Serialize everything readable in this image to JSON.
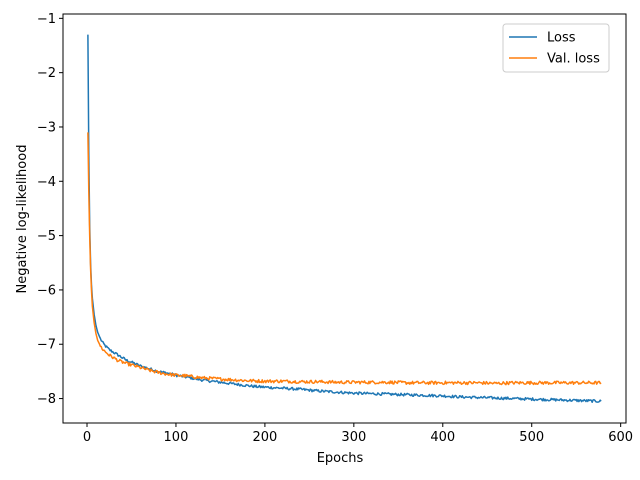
{
  "chart_data": {
    "type": "line",
    "title": "",
    "xlabel": "Epochs",
    "ylabel": "Negative log-likelihood",
    "xlim": [
      -27,
      606
    ],
    "ylim": [
      -8.45,
      -0.92
    ],
    "xticks": [
      0,
      100,
      200,
      300,
      400,
      500,
      600
    ],
    "xtick_labels": [
      "0",
      "100",
      "200",
      "300",
      "400",
      "500",
      "600"
    ],
    "yticks": [
      -8,
      -7,
      -6,
      -5,
      -4,
      -3,
      -2,
      -1
    ],
    "ytick_labels": [
      "−8",
      "−7",
      "−6",
      "−5",
      "−4",
      "−3",
      "−2",
      "−1"
    ],
    "grid": false,
    "legend_position": "top-right",
    "series": [
      {
        "name": "Loss",
        "color": "#1f77b4",
        "points": [
          [
            1,
            -1.3
          ],
          [
            2,
            -3.5
          ],
          [
            3,
            -4.8
          ],
          [
            4,
            -5.5
          ],
          [
            5,
            -5.9
          ],
          [
            6,
            -6.15
          ],
          [
            8,
            -6.45
          ],
          [
            10,
            -6.65
          ],
          [
            12,
            -6.78
          ],
          [
            15,
            -6.9
          ],
          [
            18,
            -6.98
          ],
          [
            20,
            -7.02
          ],
          [
            25,
            -7.1
          ],
          [
            30,
            -7.15
          ],
          [
            35,
            -7.2
          ],
          [
            40,
            -7.25
          ],
          [
            45,
            -7.3
          ],
          [
            50,
            -7.33
          ],
          [
            60,
            -7.4
          ],
          [
            70,
            -7.45
          ],
          [
            80,
            -7.5
          ],
          [
            90,
            -7.53
          ],
          [
            100,
            -7.57
          ],
          [
            110,
            -7.6
          ],
          [
            120,
            -7.63
          ],
          [
            130,
            -7.66
          ],
          [
            140,
            -7.68
          ],
          [
            150,
            -7.7
          ],
          [
            160,
            -7.72
          ],
          [
            170,
            -7.74
          ],
          [
            180,
            -7.76
          ],
          [
            190,
            -7.78
          ],
          [
            200,
            -7.79
          ],
          [
            220,
            -7.81
          ],
          [
            240,
            -7.83
          ],
          [
            260,
            -7.86
          ],
          [
            280,
            -7.88
          ],
          [
            300,
            -7.9
          ],
          [
            320,
            -7.91
          ],
          [
            340,
            -7.92
          ],
          [
            360,
            -7.93
          ],
          [
            380,
            -7.94
          ],
          [
            400,
            -7.95
          ],
          [
            420,
            -7.97
          ],
          [
            440,
            -7.98
          ],
          [
            460,
            -7.99
          ],
          [
            480,
            -8.0
          ],
          [
            500,
            -8.01
          ],
          [
            520,
            -8.02
          ],
          [
            540,
            -8.03
          ],
          [
            560,
            -8.04
          ],
          [
            578,
            -8.05
          ]
        ]
      },
      {
        "name": "Val. loss",
        "color": "#ff7f0e",
        "points": [
          [
            1,
            -3.1
          ],
          [
            2,
            -4.2
          ],
          [
            3,
            -5.0
          ],
          [
            4,
            -5.6
          ],
          [
            5,
            -6.0
          ],
          [
            6,
            -6.3
          ],
          [
            8,
            -6.6
          ],
          [
            10,
            -6.8
          ],
          [
            12,
            -6.93
          ],
          [
            15,
            -7.03
          ],
          [
            18,
            -7.1
          ],
          [
            20,
            -7.13
          ],
          [
            25,
            -7.2
          ],
          [
            30,
            -7.25
          ],
          [
            35,
            -7.3
          ],
          [
            40,
            -7.33
          ],
          [
            45,
            -7.36
          ],
          [
            50,
            -7.38
          ],
          [
            60,
            -7.43
          ],
          [
            70,
            -7.48
          ],
          [
            80,
            -7.52
          ],
          [
            90,
            -7.55
          ],
          [
            100,
            -7.57
          ],
          [
            110,
            -7.58
          ],
          [
            120,
            -7.6
          ],
          [
            130,
            -7.62
          ],
          [
            140,
            -7.63
          ],
          [
            150,
            -7.64
          ],
          [
            160,
            -7.65
          ],
          [
            170,
            -7.66
          ],
          [
            180,
            -7.67
          ],
          [
            200,
            -7.68
          ],
          [
            220,
            -7.68
          ],
          [
            240,
            -7.69
          ],
          [
            260,
            -7.69
          ],
          [
            280,
            -7.7
          ],
          [
            300,
            -7.7
          ],
          [
            320,
            -7.7
          ],
          [
            340,
            -7.7
          ],
          [
            360,
            -7.71
          ],
          [
            380,
            -7.71
          ],
          [
            400,
            -7.71
          ],
          [
            420,
            -7.71
          ],
          [
            440,
            -7.71
          ],
          [
            460,
            -7.72
          ],
          [
            480,
            -7.71
          ],
          [
            500,
            -7.71
          ],
          [
            520,
            -7.71
          ],
          [
            540,
            -7.71
          ],
          [
            560,
            -7.71
          ],
          [
            578,
            -7.71
          ]
        ]
      }
    ]
  }
}
